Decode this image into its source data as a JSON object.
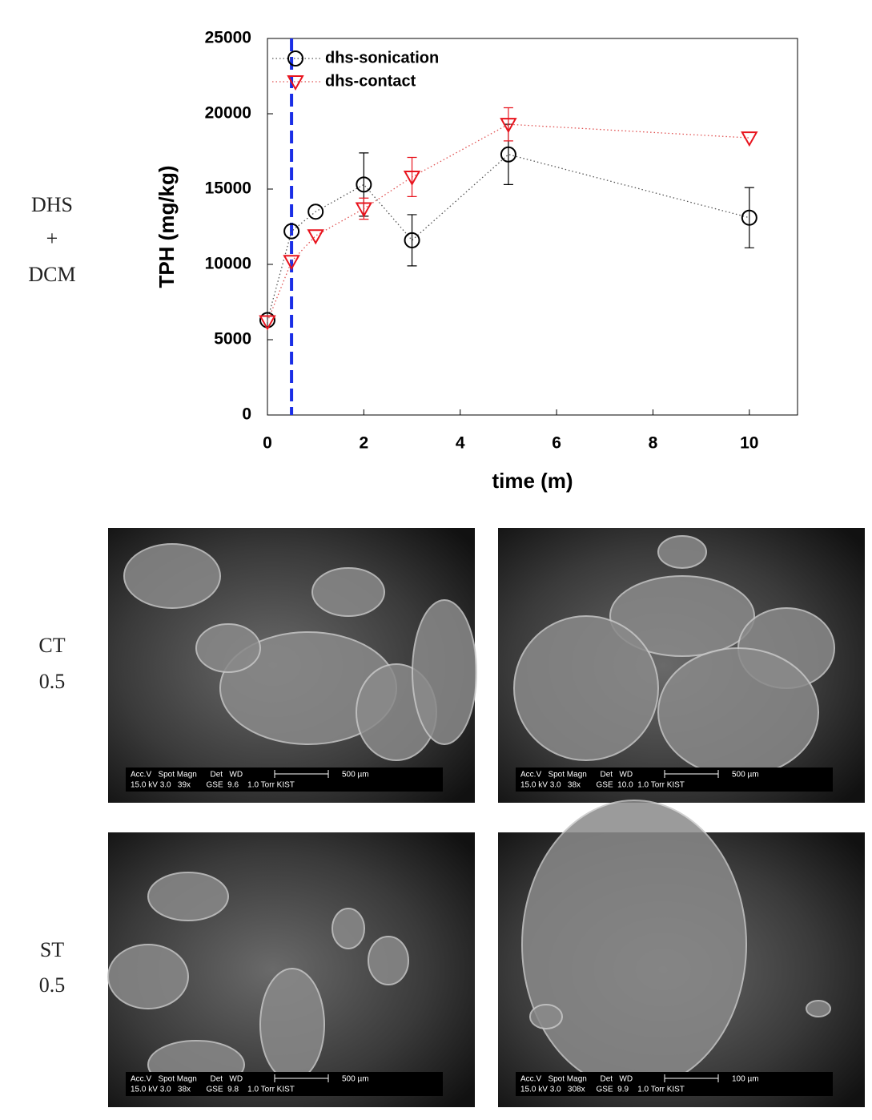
{
  "chart_data": {
    "type": "line",
    "xlabel": "time (m)",
    "ylabel": "TPH (mg/kg)",
    "xlim": [
      0,
      11
    ],
    "xticks": [
      0,
      2,
      4,
      6,
      8,
      10
    ],
    "ylim": [
      0,
      25000
    ],
    "yticks": [
      0,
      5000,
      10000,
      15000,
      20000,
      25000
    ],
    "vline": {
      "x": 0.5,
      "color": "#1a2ee6"
    },
    "legend": "upper left",
    "series": [
      {
        "name": "dhs-sonication",
        "color": "#000000",
        "marker": "circle",
        "x": [
          0,
          0.5,
          1,
          2,
          3,
          5,
          10
        ],
        "values": [
          6300,
          12200,
          13500,
          15300,
          11600,
          17300,
          13100
        ],
        "errors": [
          null,
          null,
          null,
          2100,
          1700,
          2000,
          2000
        ]
      },
      {
        "name": "dhs-contact",
        "color": "#e8141e",
        "marker": "triangle-down",
        "x": [
          0,
          0.5,
          1,
          2,
          3,
          5,
          10
        ],
        "values": [
          6200,
          10200,
          11900,
          13700,
          15800,
          19300,
          18400
        ],
        "errors": [
          null,
          null,
          null,
          700,
          1300,
          1100,
          null
        ]
      }
    ]
  },
  "side_labels": [
    [
      "DHS",
      "+",
      "DCM"
    ],
    [
      "CT",
      "0.5"
    ],
    [
      "ST",
      "0.5"
    ]
  ],
  "images": [
    {
      "line1": "Acc.V   Spot Magn      Det   WD",
      "line2": "15.0 kV 3.0   39x       GSE  9.6    1.0 Torr KIST",
      "scale": "500 µm"
    },
    {
      "line1": "Acc.V   Spot Magn      Det   WD",
      "line2": "15.0 kV 3.0   38x       GSE  10.0  1.0 Torr KIST",
      "scale": "500 µm"
    },
    {
      "line1": "Acc.V   Spot Magn      Det   WD",
      "line2": "15.0 kV 3.0   38x       GSE  9.8    1.0 Torr KIST",
      "scale": "500 µm"
    },
    {
      "line1": "Acc.V   Spot Magn      Det   WD",
      "line2": "15.0 kV 3.0   308x     GSE  9.9    1.0 Torr KIST",
      "scale": "100 µm"
    }
  ]
}
